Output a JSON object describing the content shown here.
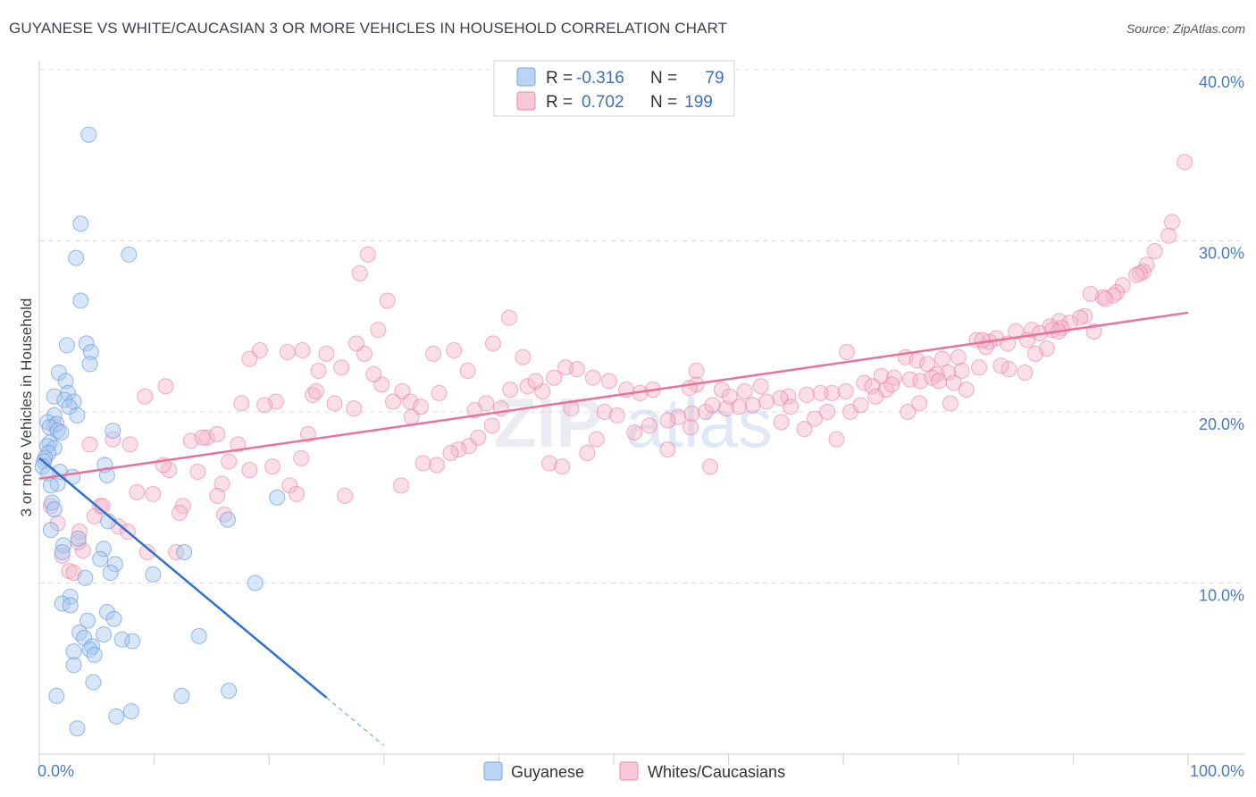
{
  "title": "GUYANESE VS WHITE/CAUCASIAN 3 OR MORE VEHICLES IN HOUSEHOLD CORRELATION CHART",
  "source": "Source: ZipAtlas.com",
  "watermark": "ZIPatlas",
  "legend": {
    "rows": [
      {
        "r_label": "R =",
        "r_value": "-0.316",
        "n_label": "N =",
        "n_value": "79",
        "color": "#a9c8f0"
      },
      {
        "r_label": "R =",
        "r_value": "0.702",
        "n_label": "N =",
        "n_value": "199",
        "color": "#f5b7c9"
      }
    ]
  },
  "bottom_legend": [
    {
      "label": "Guyanese",
      "color": "#a9c8f0"
    },
    {
      "label": "Whites/Caucasians",
      "color": "#f5b7c9"
    }
  ],
  "chart_data": {
    "type": "scatter",
    "title": "GUYANESE VS WHITE/CAUCASIAN 3 OR MORE VEHICLES IN HOUSEHOLD CORRELATION CHART",
    "ylabel": "3 or more Vehicles in Household",
    "xlim": [
      0,
      100
    ],
    "ylim": [
      0,
      40
    ],
    "x_tick_labels": [
      "0.0%",
      "100.0%"
    ],
    "y_ticks": [
      10,
      20,
      30,
      40
    ],
    "y_tick_labels": [
      "10.0%",
      "20.0%",
      "30.0%",
      "40.0%"
    ],
    "grid": true,
    "legend_position": "top-center",
    "series": [
      {
        "name": "Guyanese",
        "color": "#6a9ee0",
        "fill": "#a9c8f0",
        "trend": {
          "x0": 0,
          "y0": 17.3,
          "x1": 25,
          "y1": 3.3,
          "dash_to_x": 30
        },
        "points": [
          [
            4.3,
            36.2
          ],
          [
            3.6,
            31.0
          ],
          [
            3.2,
            29.0
          ],
          [
            7.8,
            29.2
          ],
          [
            3.6,
            26.5
          ],
          [
            2.4,
            23.9
          ],
          [
            4.1,
            24.0
          ],
          [
            4.5,
            23.5
          ],
          [
            4.4,
            22.8
          ],
          [
            1.7,
            22.3
          ],
          [
            2.3,
            21.8
          ],
          [
            2.5,
            21.1
          ],
          [
            1.3,
            20.9
          ],
          [
            2.2,
            20.7
          ],
          [
            3.0,
            20.6
          ],
          [
            2.6,
            20.3
          ],
          [
            1.3,
            19.8
          ],
          [
            3.3,
            19.8
          ],
          [
            0.7,
            19.4
          ],
          [
            1.5,
            19.3
          ],
          [
            0.9,
            19.1
          ],
          [
            1.6,
            18.9
          ],
          [
            6.4,
            18.9
          ],
          [
            1.9,
            18.8
          ],
          [
            0.9,
            18.2
          ],
          [
            0.7,
            18.0
          ],
          [
            1.3,
            17.9
          ],
          [
            0.8,
            17.6
          ],
          [
            0.5,
            17.3
          ],
          [
            0.4,
            17.1
          ],
          [
            0.3,
            16.8
          ],
          [
            5.7,
            16.9
          ],
          [
            1.8,
            16.5
          ],
          [
            0.8,
            16.4
          ],
          [
            2.9,
            16.2
          ],
          [
            5.9,
            16.3
          ],
          [
            1.6,
            15.8
          ],
          [
            1.0,
            15.7
          ],
          [
            20.7,
            15.0
          ],
          [
            1.1,
            14.7
          ],
          [
            1.3,
            14.3
          ],
          [
            6.0,
            13.6
          ],
          [
            16.4,
            13.7
          ],
          [
            3.4,
            12.6
          ],
          [
            2.1,
            12.2
          ],
          [
            5.6,
            12.0
          ],
          [
            2.0,
            11.8
          ],
          [
            12.6,
            11.8
          ],
          [
            5.3,
            11.4
          ],
          [
            6.6,
            11.1
          ],
          [
            6.2,
            10.6
          ],
          [
            9.9,
            10.5
          ],
          [
            4.0,
            10.3
          ],
          [
            18.8,
            10.0
          ],
          [
            2.7,
            9.2
          ],
          [
            2.0,
            8.8
          ],
          [
            2.7,
            8.7
          ],
          [
            5.9,
            8.3
          ],
          [
            6.5,
            7.9
          ],
          [
            4.2,
            7.8
          ],
          [
            3.5,
            7.1
          ],
          [
            5.6,
            7.0
          ],
          [
            13.9,
            6.9
          ],
          [
            3.9,
            6.8
          ],
          [
            8.1,
            6.6
          ],
          [
            7.2,
            6.7
          ],
          [
            4.6,
            6.3
          ],
          [
            3.0,
            6.0
          ],
          [
            4.4,
            6.1
          ],
          [
            4.8,
            5.8
          ],
          [
            3.0,
            5.2
          ],
          [
            4.7,
            4.2
          ],
          [
            1.5,
            3.4
          ],
          [
            12.4,
            3.4
          ],
          [
            16.5,
            3.7
          ],
          [
            8.0,
            2.5
          ],
          [
            6.7,
            2.2
          ],
          [
            3.3,
            1.5
          ],
          [
            1.0,
            13.1
          ]
        ]
      },
      {
        "name": "Whites/Caucasians",
        "color": "#e8729a",
        "fill": "#f5b7c9",
        "trend": {
          "x0": 0,
          "y0": 16.1,
          "x1": 100,
          "y1": 25.8
        },
        "points": [
          [
            99.7,
            34.6
          ],
          [
            98.6,
            31.1
          ],
          [
            98.3,
            30.3
          ],
          [
            97.1,
            29.4
          ],
          [
            96.4,
            28.6
          ],
          [
            96.1,
            28.2
          ],
          [
            95.8,
            28.1
          ],
          [
            95.5,
            28.0
          ],
          [
            94.3,
            27.4
          ],
          [
            93.8,
            27.0
          ],
          [
            93.5,
            26.8
          ],
          [
            92.6,
            26.7
          ],
          [
            91.5,
            26.9
          ],
          [
            92.8,
            26.6
          ],
          [
            91.0,
            25.6
          ],
          [
            90.6,
            25.5
          ],
          [
            88.8,
            25.3
          ],
          [
            89.7,
            25.2
          ],
          [
            88.0,
            25.0
          ],
          [
            89.0,
            24.9
          ],
          [
            86.4,
            24.8
          ],
          [
            85.0,
            24.7
          ],
          [
            87.1,
            24.6
          ],
          [
            83.3,
            24.3
          ],
          [
            86.0,
            24.2
          ],
          [
            81.6,
            24.2
          ],
          [
            82.7,
            24.1
          ],
          [
            84.3,
            24.0
          ],
          [
            82.4,
            23.8
          ],
          [
            87.7,
            23.7
          ],
          [
            88.2,
            24.8
          ],
          [
            91.8,
            24.7
          ],
          [
            70.3,
            23.5
          ],
          [
            75.4,
            23.2
          ],
          [
            78.6,
            23.1
          ],
          [
            80.0,
            23.2
          ],
          [
            76.4,
            23.0
          ],
          [
            77.3,
            22.8
          ],
          [
            81.8,
            22.6
          ],
          [
            80.3,
            22.4
          ],
          [
            79.1,
            22.3
          ],
          [
            78.1,
            22.2
          ],
          [
            73.3,
            22.1
          ],
          [
            74.4,
            22.0
          ],
          [
            75.8,
            21.9
          ],
          [
            76.7,
            21.8
          ],
          [
            79.6,
            21.7
          ],
          [
            71.8,
            21.7
          ],
          [
            72.5,
            21.5
          ],
          [
            73.7,
            21.3
          ],
          [
            70.2,
            21.2
          ],
          [
            69.0,
            21.1
          ],
          [
            68.0,
            21.1
          ],
          [
            66.8,
            21.0
          ],
          [
            65.2,
            20.9
          ],
          [
            64.5,
            20.8
          ],
          [
            63.3,
            20.6
          ],
          [
            62.1,
            20.4
          ],
          [
            60.9,
            20.3
          ],
          [
            59.8,
            20.2
          ],
          [
            58.0,
            20.0
          ],
          [
            56.8,
            19.9
          ],
          [
            55.6,
            19.7
          ],
          [
            54.7,
            19.5
          ],
          [
            53.4,
            21.3
          ],
          [
            52.3,
            21.1
          ],
          [
            51.1,
            21.3
          ],
          [
            49.6,
            21.8
          ],
          [
            48.2,
            22.0
          ],
          [
            46.8,
            22.5
          ],
          [
            45.8,
            22.6
          ],
          [
            43.8,
            21.2
          ],
          [
            42.5,
            21.5
          ],
          [
            41.0,
            21.3
          ],
          [
            40.2,
            20.2
          ],
          [
            39.4,
            19.2
          ],
          [
            38.2,
            18.5
          ],
          [
            37.4,
            18.0
          ],
          [
            36.5,
            17.8
          ],
          [
            35.8,
            17.6
          ],
          [
            34.6,
            16.9
          ],
          [
            33.4,
            17.0
          ],
          [
            32.4,
            19.7
          ],
          [
            31.6,
            21.2
          ],
          [
            30.8,
            20.6
          ],
          [
            29.8,
            21.6
          ],
          [
            29.1,
            22.2
          ],
          [
            28.3,
            23.4
          ],
          [
            27.6,
            24.0
          ],
          [
            26.3,
            22.6
          ],
          [
            25.0,
            23.4
          ],
          [
            24.3,
            22.4
          ],
          [
            23.8,
            21.0
          ],
          [
            22.9,
            23.6
          ],
          [
            21.6,
            23.5
          ],
          [
            20.6,
            20.6
          ],
          [
            19.6,
            20.4
          ],
          [
            19.2,
            23.6
          ],
          [
            18.3,
            16.6
          ],
          [
            17.6,
            20.5
          ],
          [
            16.5,
            17.1
          ],
          [
            15.9,
            15.8
          ],
          [
            15.5,
            15.1
          ],
          [
            14.6,
            18.5
          ],
          [
            13.8,
            16.5
          ],
          [
            13.2,
            18.3
          ],
          [
            12.5,
            14.5
          ],
          [
            12.2,
            14.1
          ],
          [
            11.3,
            16.6
          ],
          [
            10.8,
            16.9
          ],
          [
            9.9,
            15.2
          ],
          [
            9.4,
            11.8
          ],
          [
            8.5,
            15.3
          ],
          [
            7.9,
            18.1
          ],
          [
            6.9,
            13.3
          ],
          [
            6.4,
            18.4
          ],
          [
            5.3,
            14.5
          ],
          [
            4.8,
            13.9
          ],
          [
            4.4,
            18.1
          ],
          [
            3.8,
            11.9
          ],
          [
            3.4,
            12.4
          ],
          [
            2.6,
            10.7
          ],
          [
            2.0,
            11.6
          ],
          [
            1.6,
            13.5
          ],
          [
            1.0,
            14.5
          ],
          [
            1.3,
            19.2
          ],
          [
            3.0,
            10.6
          ],
          [
            9.2,
            20.9
          ],
          [
            11.0,
            21.5
          ],
          [
            14.2,
            18.5
          ],
          [
            15.5,
            18.7
          ],
          [
            17.3,
            18.1
          ],
          [
            18.3,
            23.1
          ],
          [
            20.3,
            16.8
          ],
          [
            21.8,
            15.7
          ],
          [
            22.8,
            17.3
          ],
          [
            23.4,
            18.7
          ],
          [
            24.1,
            21.2
          ],
          [
            25.7,
            20.5
          ],
          [
            26.6,
            15.1
          ],
          [
            27.9,
            28.1
          ],
          [
            28.6,
            29.2
          ],
          [
            29.5,
            24.8
          ],
          [
            30.3,
            26.5
          ],
          [
            31.5,
            15.7
          ],
          [
            32.3,
            20.6
          ],
          [
            33.2,
            20.3
          ],
          [
            34.3,
            23.4
          ],
          [
            34.8,
            21.1
          ],
          [
            36.1,
            23.6
          ],
          [
            37.3,
            22.4
          ],
          [
            37.9,
            20.1
          ],
          [
            38.9,
            20.5
          ],
          [
            39.5,
            24.0
          ],
          [
            40.9,
            25.5
          ],
          [
            42.1,
            23.2
          ],
          [
            43.2,
            21.8
          ],
          [
            44.4,
            17.0
          ],
          [
            44.8,
            22.0
          ],
          [
            45.5,
            16.8
          ],
          [
            46.3,
            20.2
          ],
          [
            47.7,
            17.6
          ],
          [
            48.5,
            18.4
          ],
          [
            49.2,
            20.0
          ],
          [
            50.3,
            19.8
          ],
          [
            51.8,
            18.8
          ],
          [
            53.1,
            19.2
          ],
          [
            54.7,
            17.8
          ],
          [
            56.7,
            19.1
          ],
          [
            57.2,
            21.6
          ],
          [
            58.6,
            20.4
          ],
          [
            59.4,
            21.3
          ],
          [
            60.1,
            20.9
          ],
          [
            61.4,
            21.2
          ],
          [
            62.8,
            21.5
          ],
          [
            64.6,
            19.4
          ],
          [
            65.4,
            20.3
          ],
          [
            66.6,
            19.0
          ],
          [
            67.5,
            19.6
          ],
          [
            68.6,
            20.0
          ],
          [
            69.4,
            18.4
          ],
          [
            70.6,
            20.0
          ],
          [
            71.5,
            20.4
          ],
          [
            72.8,
            20.9
          ],
          [
            74.2,
            21.6
          ],
          [
            75.6,
            20.0
          ],
          [
            76.6,
            20.5
          ],
          [
            77.7,
            22.0
          ],
          [
            78.3,
            21.8
          ],
          [
            79.3,
            20.5
          ],
          [
            80.7,
            21.3
          ],
          [
            84.4,
            22.5
          ],
          [
            86.7,
            23.4
          ],
          [
            88.7,
            24.7
          ],
          [
            85.8,
            22.3
          ],
          [
            82.1,
            24.2
          ],
          [
            83.7,
            22.7
          ],
          [
            58.4,
            16.8
          ],
          [
            57.2,
            22.4
          ],
          [
            56.6,
            21.4
          ],
          [
            27.4,
            20.2
          ],
          [
            22.4,
            15.2
          ],
          [
            5.5,
            14.5
          ],
          [
            3.5,
            13.0
          ],
          [
            7.7,
            13.0
          ],
          [
            11.9,
            11.8
          ],
          [
            16.1,
            14.0
          ]
        ]
      }
    ]
  }
}
